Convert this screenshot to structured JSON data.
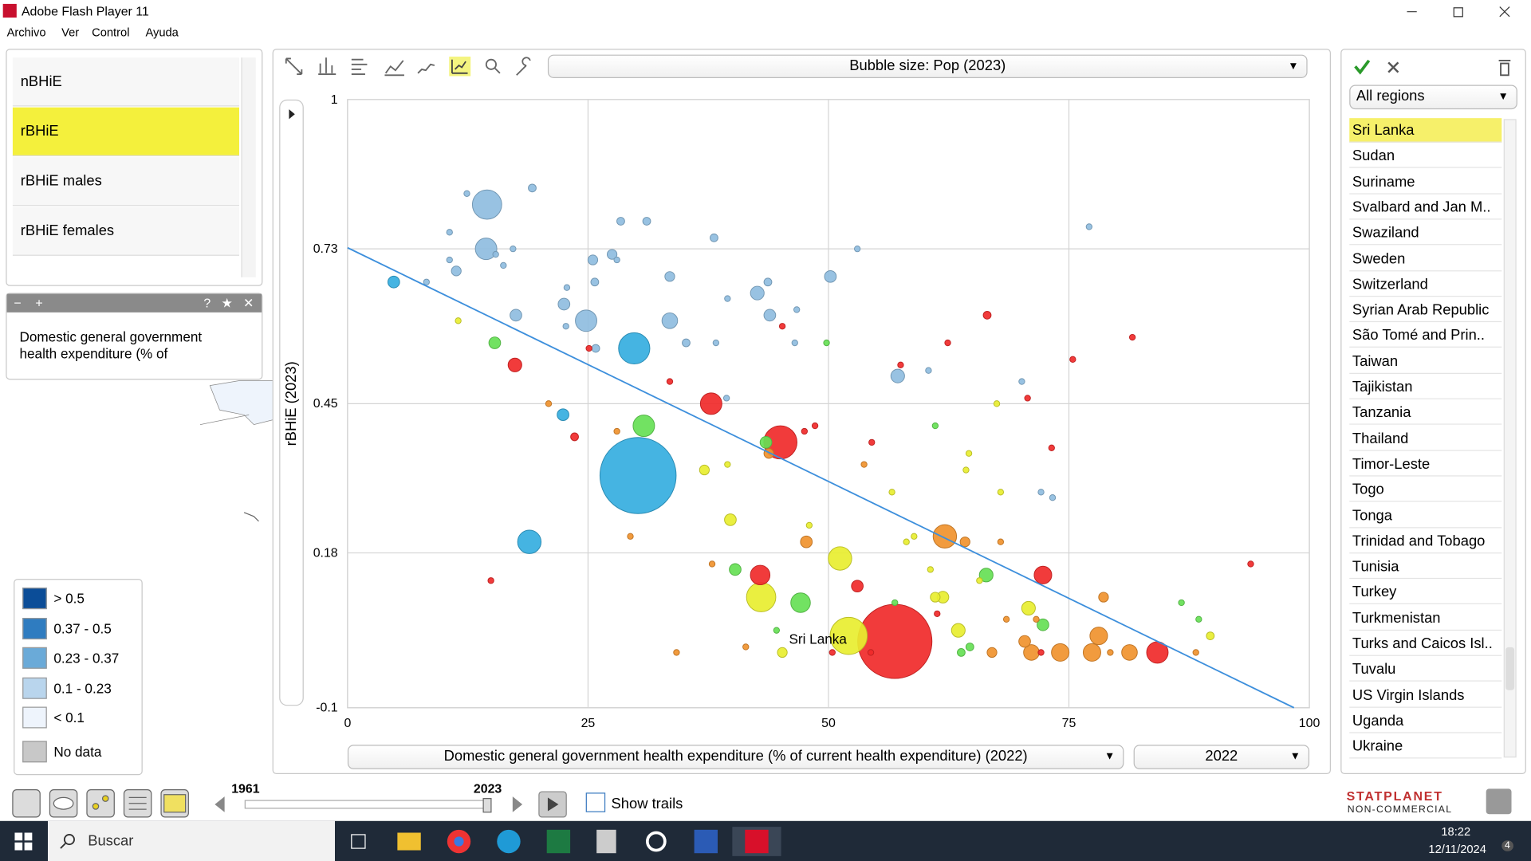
{
  "window": {
    "title": "Adobe Flash Player 11"
  },
  "menu": [
    "Archivo",
    "Ver",
    "Control",
    "Ayuda"
  ],
  "indicators": [
    "nBHiE",
    "rBHiE",
    "rBHiE males",
    "rBHiE females"
  ],
  "description": "Domestic general government health expenditure (% of",
  "map_legend": [
    {
      "label": "> 0.5",
      "color": "#0b4d98"
    },
    {
      "label": "0.37 - 0.5",
      "color": "#2f7cc0"
    },
    {
      "label": "0.23 - 0.37",
      "color": "#6aaad8"
    },
    {
      "label": "0.1 - 0.23",
      "color": "#b9d5ed"
    },
    {
      "label": "< 0.1",
      "color": "#eef4fc"
    },
    {
      "label": "No data",
      "color": "#c8c8c8"
    }
  ],
  "chart_data": {
    "type": "scatter",
    "size_label": "Bubble size: Pop (2023)",
    "y_label": "rBHiE (2023)",
    "x_label": "Domestic general government health expenditure (% of current health expenditure)  (2022)",
    "x_year": "2022",
    "xlim": [
      0,
      100
    ],
    "ylim": [
      -0.1,
      1
    ],
    "xticks": [
      0,
      25,
      50,
      75,
      100
    ],
    "yticks": [
      -0.1,
      0.18,
      0.45,
      0.73,
      1
    ],
    "grid": true,
    "trendline": {
      "x": [
        0,
        98.4
      ],
      "y": [
        0.732,
        -0.1
      ],
      "color": "#3d8fdc"
    },
    "annotation": {
      "text": "Sri Lanka",
      "series": 3,
      "point": 6
    },
    "series": [
      {
        "color": "#8fbde0",
        "x": [
          14.5,
          14.4,
          19.2,
          12.4,
          10.6,
          28.4,
          31.1,
          38.1,
          11.3,
          17.2,
          16.2,
          15.4,
          10.6,
          25.5,
          27.5,
          28.0,
          33.5,
          25.7,
          22.8,
          22.5,
          24.8,
          17.5,
          33.5,
          22.7,
          39.5,
          42.6,
          43.7,
          43.9,
          46.7,
          50.2,
          35.2,
          38.3,
          25.8,
          46.5,
          39.4,
          53.0,
          57.2,
          60.4,
          77.1,
          70.1,
          72.1,
          73.3,
          8.2
        ],
        "y": [
          0.81,
          0.73,
          0.84,
          0.83,
          0.76,
          0.78,
          0.78,
          0.75,
          0.69,
          0.73,
          0.7,
          0.72,
          0.71,
          0.71,
          0.72,
          0.71,
          0.68,
          0.67,
          0.66,
          0.63,
          0.6,
          0.61,
          0.6,
          0.59,
          0.64,
          0.65,
          0.67,
          0.61,
          0.62,
          0.68,
          0.56,
          0.56,
          0.55,
          0.56,
          0.46,
          0.73,
          0.5,
          0.51,
          0.77,
          0.49,
          0.29,
          0.28,
          0.67
        ],
        "size": [
          225,
          121,
          16,
          9,
          9,
          16,
          16,
          16,
          25,
          9,
          9,
          9,
          9,
          25,
          25,
          9,
          25,
          16,
          9,
          36,
          121,
          36,
          64,
          9,
          9,
          49,
          16,
          36,
          9,
          36,
          16,
          9,
          16,
          9,
          9,
          9,
          49,
          9,
          9,
          9,
          9,
          9,
          9
        ]
      },
      {
        "color": "#35aee0",
        "x": [
          4.8,
          22.4,
          18.9,
          29.8,
          30.2
        ],
        "y": [
          0.67,
          0.43,
          0.2,
          0.55,
          0.32
        ],
        "size": [
          36,
          36,
          144,
          256,
          1521
        ]
      },
      {
        "color": "#f02a2a",
        "x": [
          17.4,
          37.8,
          45.0,
          33.5,
          23.6,
          25.1,
          45.2,
          47.5,
          48.6,
          66.5,
          62.4,
          57.5,
          54.5,
          73.2,
          75.4,
          81.6,
          42.9,
          53.0,
          56.9,
          72.3,
          84.2,
          93.9,
          54.4,
          50.4,
          70.7,
          14.9,
          72.1,
          61.3
        ],
        "y": [
          0.52,
          0.45,
          0.38,
          0.49,
          0.39,
          0.55,
          0.59,
          0.4,
          0.41,
          0.61,
          0.56,
          0.52,
          0.38,
          0.37,
          0.53,
          0.57,
          0.14,
          0.12,
          0.02,
          0.14,
          0.0,
          0.16,
          0.0,
          0.0,
          0.46,
          0.13,
          0.0,
          0.07
        ],
        "size": [
          49,
          121,
          289,
          9,
          16,
          9,
          9,
          9,
          9,
          16,
          9,
          9,
          9,
          9,
          9,
          9,
          100,
          36,
          1444,
          81,
          121,
          9,
          9,
          9,
          9,
          9,
          9,
          9
        ]
      },
      {
        "color": "#e8ee30",
        "x": [
          11.5,
          37.1,
          39.5,
          39.8,
          43.0,
          51.2,
          52.1,
          45.2,
          61.1,
          61.9,
          63.5,
          70.8,
          67.5,
          56.6,
          58.9,
          58.1,
          64.3,
          64.6,
          67.9,
          89.7,
          65.7,
          48.0,
          60.6
        ],
        "y": [
          0.6,
          0.33,
          0.34,
          0.24,
          0.1,
          0.17,
          0.03,
          0.0,
          0.1,
          0.1,
          0.04,
          0.08,
          0.45,
          0.29,
          0.21,
          0.2,
          0.33,
          0.36,
          0.29,
          0.03,
          0.13,
          0.23,
          0.15
        ],
        "size": [
          9,
          25,
          9,
          36,
          225,
          144,
          361,
          25,
          25,
          36,
          49,
          49,
          9,
          9,
          9,
          9,
          9,
          9,
          9,
          16,
          9,
          9,
          9
        ]
      },
      {
        "color": "#f0922e",
        "x": [
          28.0,
          29.4,
          20.9,
          43.8,
          47.7,
          62.1,
          64.2,
          67.9,
          78.6,
          78.1,
          70.4,
          71.1,
          74.1,
          77.4,
          81.3,
          68.5,
          67.0,
          34.2,
          41.4,
          37.9,
          88.2,
          71.6,
          53.7,
          79.3
        ],
        "y": [
          0.4,
          0.21,
          0.45,
          0.36,
          0.2,
          0.21,
          0.2,
          0.2,
          0.1,
          0.03,
          0.02,
          0.0,
          0.0,
          0.0,
          0.0,
          0.06,
          0.0,
          0.0,
          0.01,
          0.16,
          0.0,
          0.06,
          0.34,
          0.0
        ],
        "size": [
          9,
          9,
          9,
          25,
          36,
          144,
          25,
          9,
          25,
          81,
          36,
          64,
          81,
          81,
          64,
          9,
          25,
          9,
          9,
          9,
          9,
          9,
          9,
          9
        ]
      },
      {
        "color": "#66e055",
        "x": [
          15.3,
          30.8,
          43.5,
          40.3,
          47.1,
          49.8,
          61.1,
          66.4,
          72.3,
          86.7,
          88.5,
          64.7,
          63.8,
          56.9,
          44.6
        ],
        "y": [
          0.56,
          0.41,
          0.38,
          0.15,
          0.09,
          0.56,
          0.41,
          0.14,
          0.05,
          0.09,
          0.06,
          0.01,
          0.0,
          0.09,
          0.04
        ],
        "size": [
          36,
          121,
          36,
          36,
          100,
          9,
          9,
          49,
          36,
          9,
          9,
          16,
          16,
          9,
          9
        ]
      }
    ]
  },
  "region_filter": "All regions",
  "countries": [
    "Sri Lanka",
    "Sudan",
    "Suriname",
    "Svalbard and Jan M..",
    "Swaziland",
    "Sweden",
    "Switzerland",
    "Syrian Arab Republic",
    "São Tomé and Prin..",
    "Taiwan",
    "Tajikistan",
    "Tanzania",
    "Thailand",
    "Timor-Leste",
    "Togo",
    "Tonga",
    "Trinidad and Tobago",
    "Tunisia",
    "Turkey",
    "Turkmenistan",
    "Turks and Caicos Isl..",
    "Tuvalu",
    "US Virgin Islands",
    "Uganda",
    "Ukraine"
  ],
  "timeline": {
    "start": "1961",
    "end": "2023",
    "trails": "Show trails"
  },
  "brand": {
    "name": "STATPLANET",
    "edition": "NON-COMMERCIAL"
  },
  "taskbar": {
    "search": "Buscar",
    "time": "18:22",
    "date": "12/11/2024",
    "notifications": "4"
  }
}
